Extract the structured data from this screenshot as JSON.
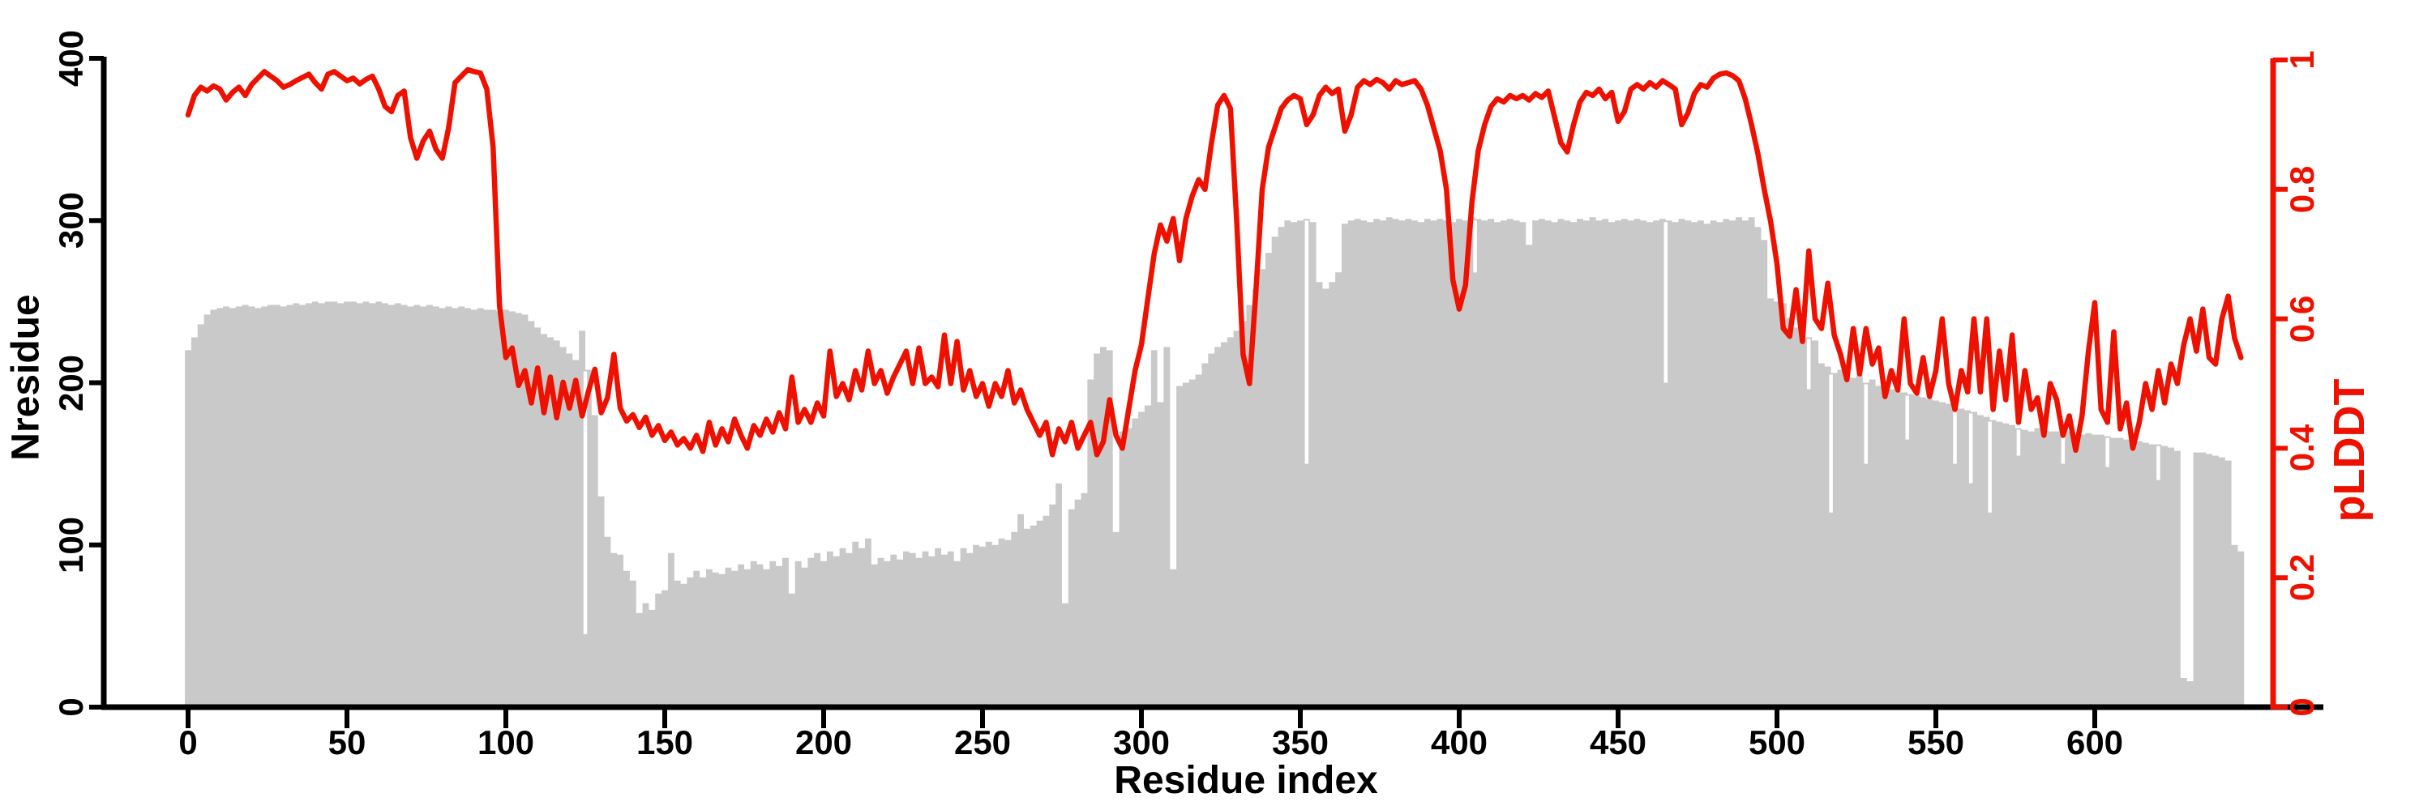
{
  "figure": {
    "background": "#ffffff"
  },
  "colors": {
    "bars": "#c9c9c9",
    "line": "#ee1100",
    "axis": "#000000",
    "gap": "#ffffff"
  },
  "axes": {
    "x": {
      "title": "Residue index",
      "tick_labels": [
        "0",
        "50",
        "100",
        "150",
        "200",
        "250",
        "300",
        "350",
        "400",
        "450",
        "500",
        "550",
        "600"
      ],
      "tick_values": [
        0,
        50,
        100,
        150,
        200,
        250,
        300,
        350,
        400,
        450,
        500,
        550,
        600
      ],
      "range": [
        0,
        650
      ]
    },
    "left": {
      "title": "Nresidue",
      "tick_labels": [
        "0",
        "100",
        "200",
        "300",
        "400"
      ],
      "tick_values": [
        0,
        100,
        200,
        300,
        400
      ],
      "range": [
        0,
        400
      ],
      "color": "#000000"
    },
    "right": {
      "title": "pLDDT",
      "tick_labels": [
        "0",
        "0.2",
        "0.4",
        "0.6",
        "0.8",
        "1"
      ],
      "tick_values": [
        0,
        0.2,
        0.4,
        0.6,
        0.8,
        1
      ],
      "range": [
        0,
        1
      ],
      "color": "#ee1100"
    }
  },
  "chart_data": [
    {
      "type": "bar",
      "name": "Nresidue",
      "axis": "left",
      "ylim": [
        0,
        400
      ],
      "x_start": 0,
      "x_step": 2,
      "values": [
        220,
        228,
        236,
        242,
        245,
        246,
        247,
        246,
        247,
        248,
        247,
        246,
        247,
        248,
        248,
        247,
        248,
        249,
        248,
        249,
        250,
        249,
        250,
        250,
        249,
        250,
        250,
        249,
        250,
        249,
        250,
        249,
        248,
        249,
        248,
        247,
        248,
        247,
        248,
        247,
        246,
        247,
        246,
        247,
        246,
        245,
        246,
        245,
        245,
        244,
        245,
        244,
        243,
        242,
        238,
        234,
        230,
        228,
        226,
        222,
        218,
        214,
        232,
        208,
        180,
        130,
        105,
        95,
        94,
        84,
        78,
        58,
        64,
        60,
        70,
        72,
        95,
        78,
        76,
        80,
        84,
        80,
        85,
        83,
        82,
        86,
        84,
        88,
        85,
        90,
        88,
        85,
        90,
        87,
        92,
        70,
        90,
        86,
        92,
        95,
        90,
        96,
        93,
        98,
        95,
        102,
        98,
        104,
        88,
        92,
        90,
        94,
        91,
        96,
        95,
        92,
        96,
        93,
        98,
        94,
        96,
        90,
        98,
        95,
        100,
        99,
        102,
        100,
        104,
        103,
        108,
        119,
        110,
        112,
        115,
        118,
        125,
        138,
        64,
        122,
        128,
        132,
        202,
        218,
        222,
        220,
        108,
        170,
        172,
        178,
        182,
        186,
        220,
        188,
        222,
        85,
        198,
        200,
        202,
        205,
        212,
        218,
        222,
        225,
        228,
        232,
        238,
        248,
        258,
        270,
        280,
        290,
        296,
        300,
        299,
        300,
        301,
        299,
        262,
        258,
        262,
        268,
        298,
        300,
        301,
        300,
        299,
        301,
        300,
        302,
        301,
        300,
        301,
        300,
        299,
        301,
        300,
        301,
        300,
        299,
        301,
        300,
        302,
        301,
        300,
        301,
        299,
        300,
        301,
        300,
        299,
        285,
        300,
        301,
        300,
        299,
        301,
        300,
        299,
        301,
        300,
        302,
        300,
        301,
        299,
        300,
        301,
        300,
        301,
        300,
        299,
        300,
        301,
        300,
        299,
        301,
        300,
        299,
        300,
        298,
        300,
        299,
        301,
        300,
        302,
        300,
        302,
        296,
        288,
        252,
        250,
        249,
        240,
        234,
        230,
        228,
        226,
        212,
        210,
        206,
        208,
        204,
        203,
        205,
        200,
        202,
        198,
        200,
        196,
        195,
        194,
        193,
        192,
        191,
        190,
        189,
        188,
        187,
        186,
        184,
        183,
        182,
        180,
        179,
        177,
        176,
        175,
        174,
        172,
        171,
        170,
        172,
        171,
        170,
        170,
        169,
        170,
        169,
        168,
        169,
        168,
        168,
        167,
        166,
        166,
        165,
        164,
        164,
        163,
        162,
        162,
        161,
        160,
        158,
        18,
        16,
        157,
        157,
        156,
        155,
        154,
        152,
        100,
        96
      ],
      "gaps": [
        [
          125,
          45
        ],
        [
          352,
          150
        ],
        [
          405,
          268
        ],
        [
          465,
          200
        ],
        [
          510,
          196
        ],
        [
          517,
          120
        ],
        [
          528,
          150
        ],
        [
          541,
          165
        ],
        [
          556,
          150
        ],
        [
          561,
          138
        ],
        [
          567,
          120
        ],
        [
          576,
          155
        ],
        [
          590,
          150
        ],
        [
          604,
          148
        ],
        [
          620,
          140
        ]
      ]
    },
    {
      "type": "line",
      "name": "pLDDT",
      "axis": "right",
      "ylim": [
        0,
        1
      ],
      "x_start": 0,
      "x_step": 2,
      "values": [
        0.915,
        0.945,
        0.958,
        0.952,
        0.96,
        0.955,
        0.938,
        0.95,
        0.958,
        0.945,
        0.962,
        0.972,
        0.982,
        0.975,
        0.968,
        0.958,
        0.962,
        0.968,
        0.973,
        0.978,
        0.965,
        0.955,
        0.978,
        0.982,
        0.975,
        0.968,
        0.972,
        0.963,
        0.97,
        0.975,
        0.955,
        0.928,
        0.92,
        0.945,
        0.952,
        0.88,
        0.848,
        0.875,
        0.89,
        0.862,
        0.848,
        0.895,
        0.965,
        0.975,
        0.985,
        0.982,
        0.98,
        0.955,
        0.865,
        0.62,
        0.54,
        0.555,
        0.497,
        0.52,
        0.47,
        0.524,
        0.455,
        0.51,
        0.447,
        0.502,
        0.462,
        0.505,
        0.45,
        0.488,
        0.522,
        0.455,
        0.478,
        0.545,
        0.462,
        0.442,
        0.452,
        0.432,
        0.448,
        0.42,
        0.435,
        0.412,
        0.425,
        0.405,
        0.415,
        0.4,
        0.42,
        0.395,
        0.44,
        0.405,
        0.43,
        0.41,
        0.445,
        0.42,
        0.4,
        0.435,
        0.42,
        0.445,
        0.425,
        0.455,
        0.43,
        0.51,
        0.44,
        0.46,
        0.44,
        0.47,
        0.45,
        0.55,
        0.48,
        0.5,
        0.475,
        0.52,
        0.49,
        0.55,
        0.5,
        0.52,
        0.485,
        0.51,
        0.53,
        0.55,
        0.5,
        0.555,
        0.5,
        0.51,
        0.495,
        0.575,
        0.5,
        0.565,
        0.49,
        0.52,
        0.48,
        0.5,
        0.465,
        0.5,
        0.48,
        0.52,
        0.47,
        0.49,
        0.46,
        0.44,
        0.42,
        0.44,
        0.39,
        0.43,
        0.41,
        0.44,
        0.4,
        0.42,
        0.44,
        0.39,
        0.41,
        0.475,
        0.42,
        0.4,
        0.46,
        0.52,
        0.56,
        0.63,
        0.7,
        0.745,
        0.72,
        0.755,
        0.69,
        0.755,
        0.79,
        0.815,
        0.8,
        0.87,
        0.93,
        0.945,
        0.925,
        0.75,
        0.545,
        0.5,
        0.64,
        0.8,
        0.865,
        0.895,
        0.925,
        0.938,
        0.945,
        0.94,
        0.9,
        0.915,
        0.945,
        0.958,
        0.948,
        0.955,
        0.89,
        0.915,
        0.958,
        0.968,
        0.962,
        0.97,
        0.965,
        0.955,
        0.968,
        0.962,
        0.965,
        0.968,
        0.955,
        0.93,
        0.895,
        0.86,
        0.8,
        0.66,
        0.615,
        0.652,
        0.78,
        0.86,
        0.9,
        0.928,
        0.94,
        0.935,
        0.945,
        0.94,
        0.945,
        0.938,
        0.948,
        0.942,
        0.952,
        0.912,
        0.872,
        0.858,
        0.9,
        0.935,
        0.95,
        0.945,
        0.955,
        0.94,
        0.95,
        0.905,
        0.92,
        0.955,
        0.962,
        0.955,
        0.965,
        0.958,
        0.968,
        0.962,
        0.955,
        0.9,
        0.918,
        0.948,
        0.962,
        0.958,
        0.972,
        0.978,
        0.98,
        0.976,
        0.968,
        0.94,
        0.9,
        0.855,
        0.8,
        0.75,
        0.685,
        0.585,
        0.573,
        0.645,
        0.565,
        0.705,
        0.6,
        0.585,
        0.655,
        0.575,
        0.545,
        0.506,
        0.585,
        0.515,
        0.585,
        0.53,
        0.555,
        0.48,
        0.52,
        0.49,
        0.6,
        0.5,
        0.485,
        0.54,
        0.48,
        0.52,
        0.6,
        0.5,
        0.46,
        0.52,
        0.487,
        0.6,
        0.487,
        0.6,
        0.46,
        0.55,
        0.475,
        0.575,
        0.44,
        0.52,
        0.46,
        0.478,
        0.42,
        0.5,
        0.475,
        0.42,
        0.45,
        0.397,
        0.45,
        0.55,
        0.625,
        0.46,
        0.44,
        0.58,
        0.43,
        0.47,
        0.4,
        0.44,
        0.5,
        0.46,
        0.52,
        0.47,
        0.53,
        0.5,
        0.56,
        0.6,
        0.55,
        0.615,
        0.54,
        0.53,
        0.6,
        0.635,
        0.57,
        0.54
      ]
    }
  ]
}
